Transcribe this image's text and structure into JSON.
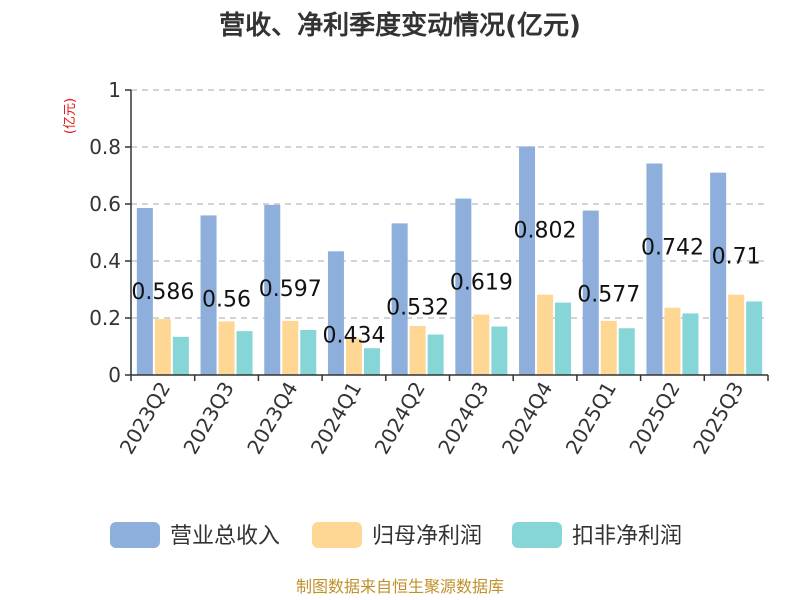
{
  "chart_data": {
    "type": "bar",
    "title": "营收、净利季度变动情况(亿元)",
    "unit_label": "(亿元)",
    "categories": [
      "2023Q2",
      "2023Q3",
      "2023Q4",
      "2024Q1",
      "2024Q2",
      "2024Q3",
      "2024Q4",
      "2025Q1",
      "2025Q2",
      "2025Q3"
    ],
    "series": [
      {
        "name": "营业总收入",
        "color": "#8eaedb",
        "values": [
          0.586,
          0.56,
          0.597,
          0.434,
          0.532,
          0.619,
          0.802,
          0.577,
          0.742,
          0.71
        ]
      },
      {
        "name": "归母净利润",
        "color": "#ffd794",
        "values": [
          0.196,
          0.188,
          0.19,
          0.128,
          0.172,
          0.212,
          0.282,
          0.19,
          0.236,
          0.282
        ]
      },
      {
        "name": "扣非净利润",
        "color": "#86d5d7",
        "values": [
          0.134,
          0.154,
          0.158,
          0.094,
          0.142,
          0.17,
          0.254,
          0.164,
          0.216,
          0.258
        ]
      }
    ],
    "data_labels": [
      "0.586",
      "0.56",
      "0.597",
      "0.434",
      "0.532",
      "0.619",
      "0.802",
      "0.577",
      "0.742",
      "0.71"
    ],
    "ylim": [
      0,
      1
    ],
    "yticks": [
      "0",
      "0.2",
      "0.4",
      "0.6",
      "0.8",
      "1"
    ],
    "grid": true,
    "legend_position": "bottom"
  },
  "source": "制图数据来自恒生聚源数据库"
}
